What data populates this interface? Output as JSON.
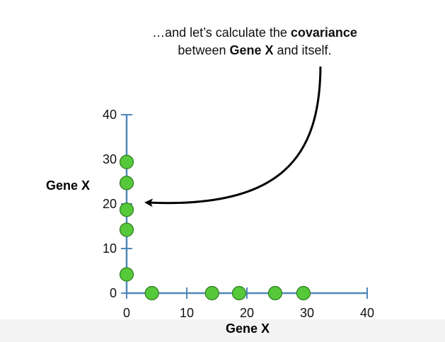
{
  "caption": {
    "line1_prefix": "…and let’s calculate the ",
    "line1_bold": "covariance",
    "line2_prefix": "between ",
    "line2_bold": "Gene X",
    "line2_suffix": " and itself."
  },
  "chart_data": {
    "type": "scatter",
    "xlabel": "Gene X",
    "ylabel": "Gene X",
    "xlim": [
      0,
      40
    ],
    "ylim": [
      0,
      40
    ],
    "x_ticks": [
      0,
      10,
      20,
      30,
      40
    ],
    "y_ticks": [
      0,
      10,
      20,
      30,
      40
    ],
    "x_tick_labels": [
      "0",
      "10",
      "20",
      "30",
      "40"
    ],
    "y_tick_labels": [
      "0",
      "10",
      "20",
      "30",
      "40"
    ],
    "series": [
      {
        "points_on_x_axis": [
          {
            "x": 4.2,
            "y": 0
          },
          {
            "x": 14.2,
            "y": 0
          },
          {
            "x": 18.7,
            "y": 0
          },
          {
            "x": 24.7,
            "y": 0
          },
          {
            "x": 29.4,
            "y": 0
          }
        ],
        "points_on_y_axis": [
          {
            "x": 0,
            "y": 4.2
          },
          {
            "x": 0,
            "y": 14.2
          },
          {
            "x": 0,
            "y": 18.7
          },
          {
            "x": 0,
            "y": 24.7
          },
          {
            "x": 0,
            "y": 29.4
          }
        ]
      }
    ],
    "colors": {
      "axis": "#4f87b8",
      "point_fill": "#55c93a",
      "point_stroke": "#2e7a1f",
      "arrow": "#000000"
    }
  }
}
